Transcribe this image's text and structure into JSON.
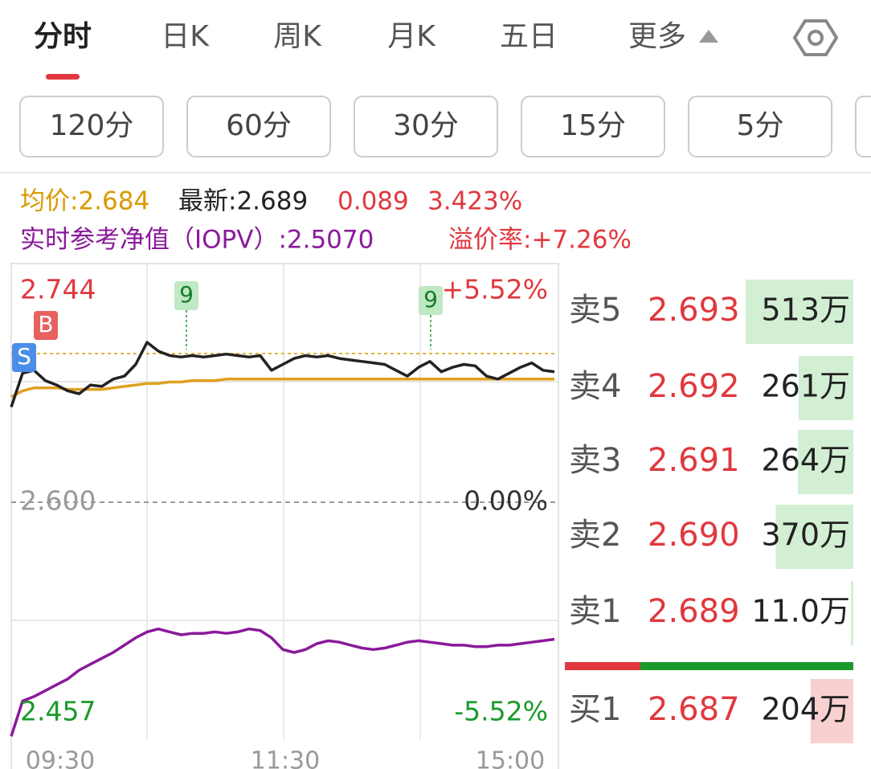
{
  "tabs": {
    "items": [
      "分时",
      "日K",
      "周K",
      "月K",
      "五日",
      "更多"
    ],
    "active": 0
  },
  "periods": [
    "120分",
    "60分",
    "30分",
    "15分",
    "5分"
  ],
  "info": {
    "avg": "均价:2.684",
    "latest": "最新:2.689",
    "change": "0.089",
    "change_pct": "3.423%",
    "iopv": "实时参考净值（IOPV）:2.5070",
    "premium": "溢价率:+7.26%"
  },
  "intraday": {
    "ylim": [
      2.457,
      2.744
    ],
    "mid": 2.6,
    "labels": {
      "top": "2.744",
      "top_pct": "+5.52%",
      "mid": "2.600",
      "mid_pct": "0.00%",
      "bottom": "2.457",
      "bottom_pct": "-5.52%"
    },
    "times": [
      "09:30",
      "11:30",
      "15:00"
    ],
    "markers": {
      "buy": "B",
      "sell": "S",
      "nine": [
        "9",
        "9"
      ]
    },
    "price": [
      2.665,
      2.688,
      2.69,
      2.683,
      2.68,
      2.676,
      2.674,
      2.68,
      2.679,
      2.684,
      2.686,
      2.694,
      2.709,
      2.703,
      2.7,
      2.699,
      2.7,
      2.699,
      2.7,
      2.701,
      2.7,
      2.699,
      2.7,
      2.69,
      2.694,
      2.698,
      2.7,
      2.699,
      2.7,
      2.698,
      2.697,
      2.696,
      2.695,
      2.694,
      2.69,
      2.686,
      2.692,
      2.696,
      2.689,
      2.692,
      2.694,
      2.693,
      2.686,
      2.684,
      2.688,
      2.692,
      2.695,
      2.69,
      2.689
    ],
    "avg": [
      2.672,
      2.676,
      2.678,
      2.678,
      2.678,
      2.677,
      2.677,
      2.677,
      2.677,
      2.678,
      2.679,
      2.68,
      2.681,
      2.681,
      2.682,
      2.682,
      2.683,
      2.683,
      2.683,
      2.684,
      2.684,
      2.684,
      2.684,
      2.684,
      2.684,
      2.684,
      2.684,
      2.684,
      2.684,
      2.684,
      2.684,
      2.684,
      2.684,
      2.684,
      2.684,
      2.684,
      2.684,
      2.684,
      2.684,
      2.684,
      2.684,
      2.684,
      2.684,
      2.684,
      2.684,
      2.684,
      2.684,
      2.684,
      2.684
    ],
    "iopv": [
      2.441,
      2.465,
      2.468,
      2.472,
      2.476,
      2.48,
      2.486,
      2.49,
      2.494,
      2.498,
      2.503,
      2.508,
      2.512,
      2.514,
      2.512,
      2.51,
      2.511,
      2.511,
      2.512,
      2.511,
      2.512,
      2.514,
      2.513,
      2.508,
      2.5,
      2.498,
      2.5,
      2.504,
      2.506,
      2.505,
      2.503,
      2.501,
      2.5,
      2.501,
      2.503,
      2.505,
      2.506,
      2.505,
      2.504,
      2.503,
      2.503,
      2.502,
      2.502,
      2.503,
      2.503,
      2.504,
      2.505,
      2.506,
      2.507
    ]
  },
  "orderbook": [
    {
      "label": "卖5",
      "price": "2.693",
      "volume": 513,
      "volume_label": "513万",
      "side": "sell"
    },
    {
      "label": "卖4",
      "price": "2.692",
      "volume": 261,
      "volume_label": "261万",
      "side": "sell"
    },
    {
      "label": "卖3",
      "price": "2.691",
      "volume": 264,
      "volume_label": "264万",
      "side": "sell"
    },
    {
      "label": "卖2",
      "price": "2.690",
      "volume": 370,
      "volume_label": "370万",
      "side": "sell"
    },
    {
      "label": "卖1",
      "price": "2.689",
      "volume": 11.0,
      "volume_label": "11.0万",
      "side": "sell"
    },
    {
      "label": "买1",
      "price": "2.687",
      "volume": 204,
      "volume_label": "204万",
      "side": "buy"
    }
  ]
}
